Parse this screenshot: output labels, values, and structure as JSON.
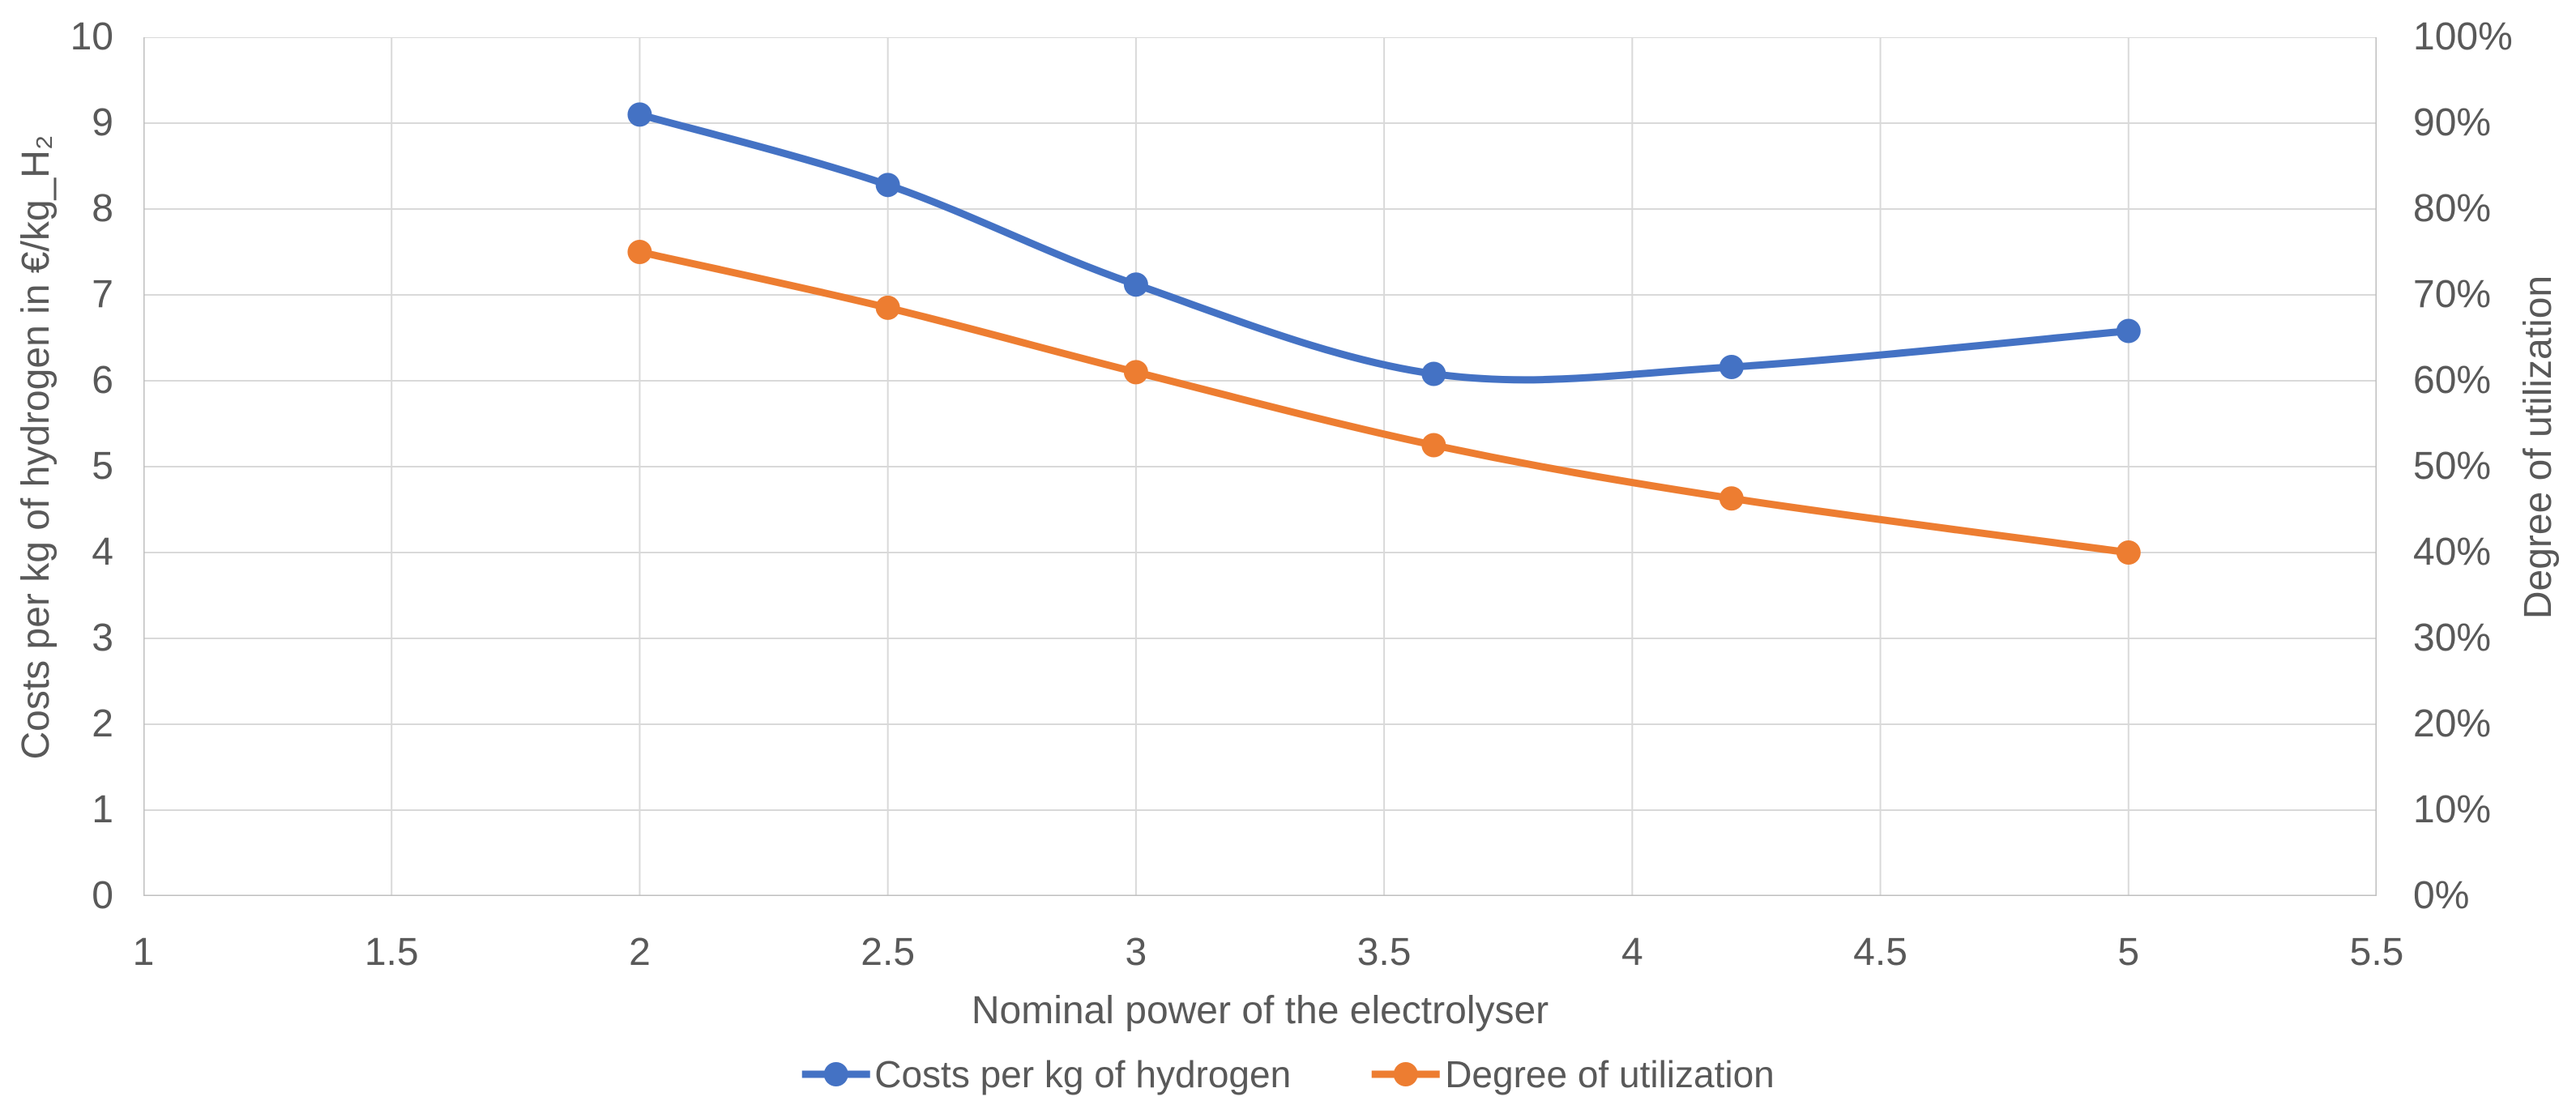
{
  "colors": {
    "series_blue": "#4472C4",
    "series_orange": "#ED7D31",
    "text": "#595959",
    "gridline": "#D9D9D9",
    "axis_line": "#BFBFBF"
  },
  "chart_data": {
    "type": "line",
    "style": "smooth-line-with-markers",
    "grid": true,
    "legend_position": "bottom",
    "x": [
      2,
      2.5,
      3,
      3.6,
      4.2,
      5
    ],
    "series": [
      {
        "name": "Costs per kg of hydrogen",
        "axis": "left",
        "color": "#4472C4",
        "values": [
          9.1,
          8.28,
          7.12,
          6.08,
          6.16,
          6.58
        ]
      },
      {
        "name": "Degree of utilization",
        "axis": "right",
        "color": "#ED7D31",
        "values_percent": [
          75,
          68.5,
          61,
          52.5,
          46.3,
          40
        ]
      }
    ],
    "x_axis": {
      "label": "Nominal power of the electrolyser",
      "min": 1,
      "max": 5.5,
      "tick_step": 0.5,
      "tick_labels": [
        "1",
        "1.5",
        "2",
        "2.5",
        "3",
        "3.5",
        "4",
        "4.5",
        "5",
        "5.5"
      ]
    },
    "y_left": {
      "label": "Costs per kg of hydrogen in €/kg_H₂",
      "min": 0,
      "max": 10,
      "tick_step": 1,
      "tick_labels": [
        "10",
        "9",
        "8",
        "7",
        "6",
        "5",
        "4",
        "3",
        "2",
        "1",
        "0"
      ]
    },
    "y_right": {
      "label": "Degree of utilization",
      "min": 0,
      "max": 100,
      "tick_step": 10,
      "tick_labels": [
        "100%",
        "90%",
        "80%",
        "70%",
        "60%",
        "50%",
        "40%",
        "30%",
        "20%",
        "10%",
        "0%"
      ]
    }
  }
}
